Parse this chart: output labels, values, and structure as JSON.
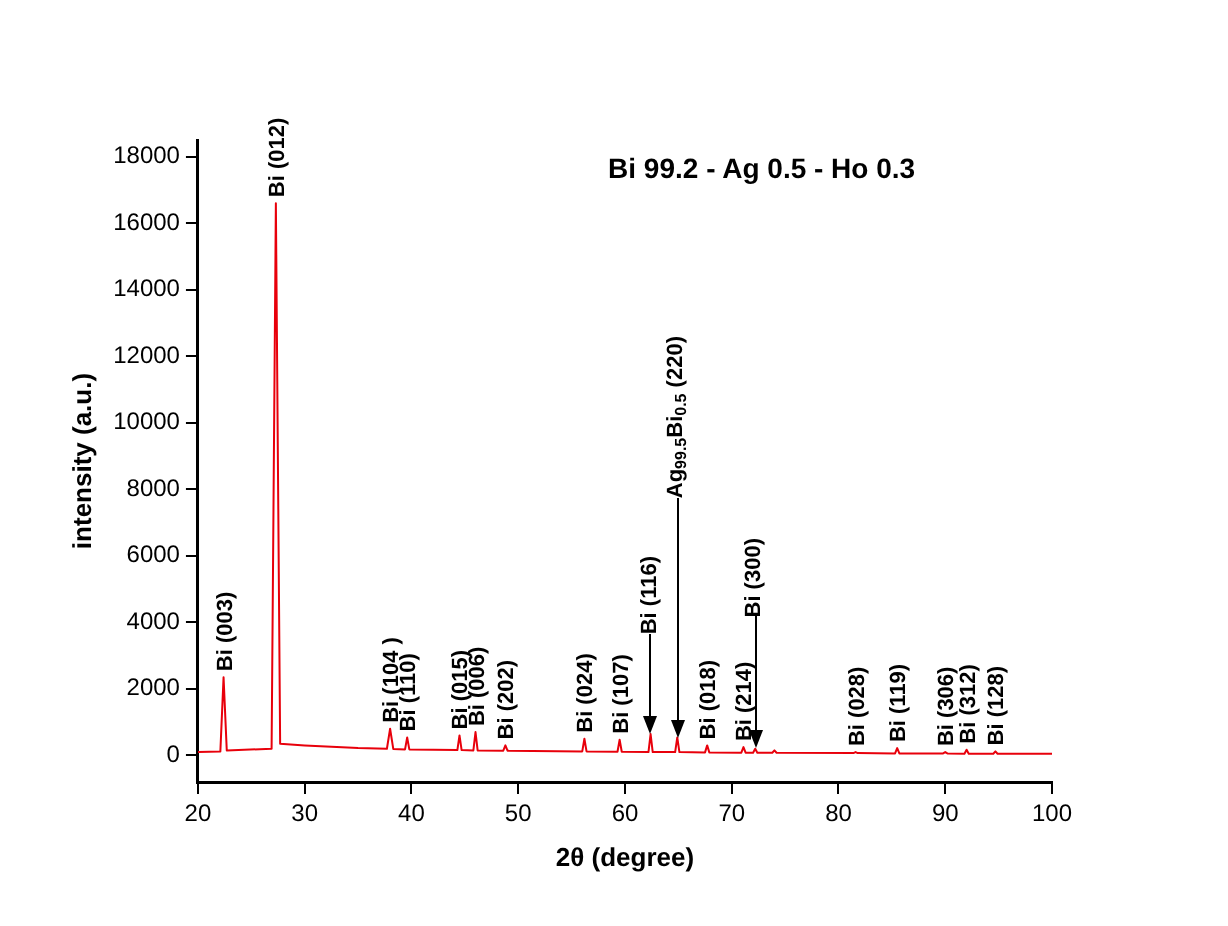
{
  "chart_data": {
    "type": "line",
    "title": "Bi 99.2 - Ag 0.5 - Ho 0.3",
    "xlabel": "2θ (degree)",
    "ylabel": "intensity (a.u.)",
    "xlim": [
      20,
      100
    ],
    "xticks": [
      20,
      30,
      40,
      50,
      60,
      70,
      80,
      90,
      100
    ],
    "ylim": [
      -800,
      18500
    ],
    "yticks": [
      0,
      2000,
      4000,
      6000,
      8000,
      10000,
      12000,
      14000,
      16000,
      18000
    ],
    "grid": false,
    "legend": false,
    "marker": "none",
    "line_style": "solid",
    "series": [
      {
        "color": "#e8000b",
        "x": [
          20,
          22.1,
          22.4,
          22.7,
          26.9,
          27.3,
          27.7,
          30,
          35,
          37.7,
          38,
          38.3,
          39.4,
          39.6,
          39.8,
          44.3,
          44.5,
          44.7,
          45.8,
          46,
          46.2,
          48.6,
          48.8,
          49,
          56,
          56.2,
          56.4,
          59.3,
          59.5,
          59.7,
          62.2,
          62.4,
          62.6,
          64.7,
          64.9,
          65.1,
          67.5,
          67.7,
          67.9,
          70.9,
          71.1,
          71.3,
          72,
          72.2,
          72.4,
          73.8,
          74,
          74.2,
          81.4,
          81.6,
          81.8,
          85.3,
          85.5,
          85.7,
          89.8,
          90,
          90.2,
          91.8,
          92,
          92.2,
          94.5,
          94.7,
          94.9,
          100
        ],
        "values": [
          100,
          120,
          2350,
          150,
          200,
          16600,
          350,
          300,
          220,
          200,
          800,
          190,
          180,
          540,
          180,
          160,
          600,
          160,
          150,
          700,
          150,
          140,
          300,
          140,
          120,
          500,
          120,
          110,
          470,
          110,
          100,
          640,
          100,
          100,
          540,
          100,
          90,
          300,
          90,
          80,
          250,
          80,
          80,
          200,
          80,
          80,
          150,
          80,
          70,
          100,
          70,
          60,
          220,
          60,
          60,
          100,
          60,
          50,
          170,
          50,
          50,
          120,
          50,
          50
        ]
      }
    ],
    "annotations": [
      {
        "text": "Bi (003)",
        "x": 22.4,
        "y": 2350
      },
      {
        "text": "Bi (012)",
        "x": 27.3,
        "y": 16600
      },
      {
        "text": "Bi (104 )",
        "x": 38,
        "y": 800
      },
      {
        "text": "Bi (110)",
        "x": 39.6,
        "y": 540
      },
      {
        "text": "Bi (015)",
        "x": 44.5,
        "y": 600
      },
      {
        "text": "Bi (006)",
        "x": 46,
        "y": 700
      },
      {
        "text": "Bi (202)",
        "x": 48.8,
        "y": 300
      },
      {
        "text": "Bi (024)",
        "x": 56.2,
        "y": 500
      },
      {
        "text": "Bi (107)",
        "x": 59.5,
        "y": 470
      },
      {
        "text": "Bi (116)",
        "x": 62.4,
        "y": 640
      },
      {
        "text": "Ag$_{99.5}$Bi$_{0.5}$ (220)",
        "x": 64.9,
        "y": 540
      },
      {
        "text": "Bi (018)",
        "x": 67.7,
        "y": 300
      },
      {
        "text": "Bi (214)",
        "x": 71.1,
        "y": 250
      },
      {
        "text": "Bi (300)",
        "x": 72.2,
        "y": 200
      },
      {
        "text": "Bi (028)",
        "x": 81.6,
        "y": 100
      },
      {
        "text": "Bi (119)",
        "x": 85.5,
        "y": 220
      },
      {
        "text": "Bi (306)",
        "x": 90,
        "y": 100
      },
      {
        "text": "Bi (312)",
        "x": 92,
        "y": 170
      },
      {
        "text": "Bi (128)",
        "x": 94.7,
        "y": 120
      }
    ]
  }
}
